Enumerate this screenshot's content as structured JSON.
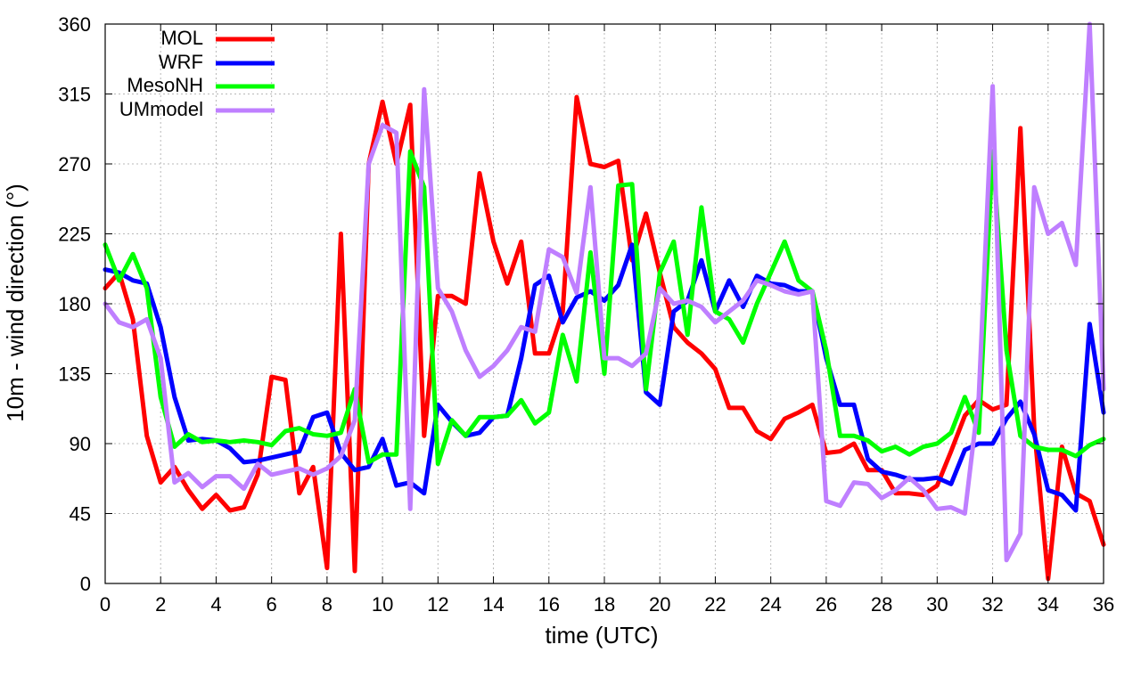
{
  "chart_data": {
    "type": "line",
    "title": "",
    "xlabel": "time (UTC)",
    "ylabel": "10m - wind direction (°)",
    "xlim": [
      0,
      36
    ],
    "ylim": [
      0,
      360
    ],
    "xticks": [
      0,
      2,
      4,
      6,
      8,
      10,
      12,
      14,
      16,
      18,
      20,
      22,
      24,
      26,
      28,
      30,
      32,
      34,
      36
    ],
    "yticks": [
      0,
      45,
      90,
      135,
      180,
      225,
      270,
      315,
      360
    ],
    "grid": true,
    "legend_position": "top-left",
    "series": [
      {
        "name": "MOL",
        "color": "#ff0000",
        "x": [
          0,
          0.5,
          1,
          1.5,
          2,
          2.5,
          3,
          3.5,
          4,
          4.5,
          5,
          5.5,
          6,
          6.5,
          7,
          7.5,
          8,
          8.5,
          9,
          9.5,
          10,
          10.5,
          11,
          11.5,
          12,
          12.5,
          13,
          13.5,
          14,
          14.5,
          15,
          15.5,
          16,
          16.5,
          17,
          17.5,
          18,
          18.5,
          19,
          19.5,
          20,
          20.5,
          21,
          21.5,
          22,
          22.5,
          23,
          23.5,
          24,
          24.5,
          25,
          25.5,
          26,
          26.5,
          27,
          27.5,
          28,
          28.5,
          29,
          29.5,
          30,
          30.5,
          31,
          31.5,
          32,
          32.5,
          33,
          33.5,
          34,
          34.5,
          35,
          35.5,
          36
        ],
        "values": [
          190,
          200,
          170,
          95,
          65,
          75,
          60,
          48,
          57,
          47,
          49,
          70,
          133,
          131,
          58,
          75,
          10,
          225,
          8,
          270,
          310,
          270,
          308,
          95,
          185,
          185,
          180,
          264,
          220,
          193,
          220,
          148,
          148,
          175,
          313,
          270,
          268,
          272,
          208,
          238,
          200,
          165,
          155,
          148,
          138,
          113,
          113,
          98,
          93,
          106,
          110,
          115,
          84,
          85,
          90,
          73,
          73,
          58,
          58,
          57,
          63,
          85,
          108,
          118,
          112,
          115,
          293,
          100,
          3,
          88,
          58,
          53,
          25
        ]
      },
      {
        "name": "WRF",
        "color": "#0000ff",
        "x": [
          0,
          0.5,
          1,
          1.5,
          2,
          2.5,
          3,
          3.5,
          4,
          4.5,
          5,
          5.5,
          6,
          6.5,
          7,
          7.5,
          8,
          8.5,
          9,
          9.5,
          10,
          10.5,
          11,
          11.5,
          12,
          12.5,
          13,
          13.5,
          14,
          14.5,
          15,
          15.5,
          16,
          16.5,
          17,
          17.5,
          18,
          18.5,
          19,
          19.5,
          20,
          20.5,
          21,
          21.5,
          22,
          22.5,
          23,
          23.5,
          24,
          24.5,
          25,
          25.5,
          26,
          26.5,
          27,
          27.5,
          28,
          28.5,
          29,
          29.5,
          30,
          30.5,
          31,
          31.5,
          32,
          32.5,
          33,
          33.5,
          34,
          34.5,
          35,
          35.5,
          36
        ],
        "values": [
          202,
          200,
          195,
          193,
          165,
          120,
          92,
          93,
          92,
          87,
          78,
          79,
          81,
          83,
          85,
          107,
          110,
          84,
          73,
          75,
          93,
          63,
          65,
          58,
          115,
          104,
          95,
          97,
          107,
          108,
          145,
          192,
          198,
          168,
          184,
          188,
          182,
          192,
          218,
          123,
          115,
          175,
          182,
          208,
          175,
          195,
          178,
          198,
          193,
          192,
          188,
          188,
          145,
          115,
          115,
          80,
          72,
          70,
          67,
          67,
          68,
          64,
          86,
          90,
          90,
          106,
          117,
          96,
          60,
          57,
          47,
          167,
          110
        ]
      },
      {
        "name": "MesoNH",
        "color": "#00ff00",
        "x": [
          0,
          0.5,
          1,
          1.5,
          2,
          2.5,
          3,
          3.5,
          4,
          4.5,
          5,
          5.5,
          6,
          6.5,
          7,
          7.5,
          8,
          8.5,
          9,
          9.5,
          10,
          10.5,
          11,
          11.5,
          12,
          12.5,
          13,
          13.5,
          14,
          14.5,
          15,
          15.5,
          16,
          16.5,
          17,
          17.5,
          18,
          18.5,
          19,
          19.5,
          20,
          20.5,
          21,
          21.5,
          22,
          22.5,
          23,
          23.5,
          24,
          24.5,
          25,
          25.5,
          26,
          26.5,
          27,
          27.5,
          28,
          28.5,
          29,
          29.5,
          30,
          30.5,
          31,
          31.5,
          32,
          32.5,
          33,
          33.5,
          34,
          34.5,
          35,
          35.5,
          36
        ],
        "values": [
          218,
          195,
          212,
          190,
          120,
          88,
          96,
          91,
          92,
          91,
          92,
          91,
          89,
          98,
          100,
          96,
          95,
          97,
          125,
          78,
          83,
          83,
          278,
          255,
          77,
          105,
          95,
          107,
          107,
          108,
          118,
          103,
          110,
          160,
          130,
          213,
          135,
          256,
          257,
          125,
          200,
          220,
          160,
          242,
          175,
          170,
          155,
          180,
          200,
          220,
          195,
          188,
          150,
          95,
          95,
          92,
          85,
          88,
          83,
          88,
          90,
          97,
          120,
          97,
          278,
          150,
          95,
          88,
          86,
          86,
          82,
          89,
          93
        ]
      },
      {
        "name": "UMmodel",
        "color": "#bf7fff",
        "x": [
          0,
          0.5,
          1,
          1.5,
          2,
          2.5,
          3,
          3.5,
          4,
          4.5,
          5,
          5.5,
          6,
          6.5,
          7,
          7.5,
          8,
          8.5,
          9,
          9.5,
          10,
          10.5,
          11,
          11.5,
          12,
          12.5,
          13,
          13.5,
          14,
          14.5,
          15,
          15.5,
          16,
          16.5,
          17,
          17.5,
          18,
          18.5,
          19,
          19.5,
          20,
          20.5,
          21,
          21.5,
          22,
          22.5,
          23,
          23.5,
          24,
          24.5,
          25,
          25.5,
          26,
          26.5,
          27,
          27.5,
          28,
          28.5,
          29,
          29.5,
          30,
          30.5,
          31,
          31.5,
          32,
          32.5,
          33,
          33.5,
          34,
          34.5,
          35,
          35.5,
          36
        ],
        "values": [
          180,
          168,
          165,
          170,
          145,
          65,
          71,
          62,
          69,
          69,
          61,
          77,
          70,
          72,
          74,
          70,
          74,
          82,
          105,
          270,
          295,
          290,
          48,
          318,
          190,
          175,
          150,
          133,
          140,
          150,
          165,
          162,
          215,
          210,
          187,
          255,
          145,
          145,
          140,
          148,
          190,
          180,
          182,
          178,
          168,
          175,
          182,
          195,
          192,
          188,
          186,
          188,
          53,
          50,
          65,
          64,
          55,
          60,
          68,
          60,
          48,
          49,
          45,
          120,
          320,
          15,
          32,
          255,
          225,
          232,
          205,
          362,
          125
        ]
      }
    ]
  }
}
